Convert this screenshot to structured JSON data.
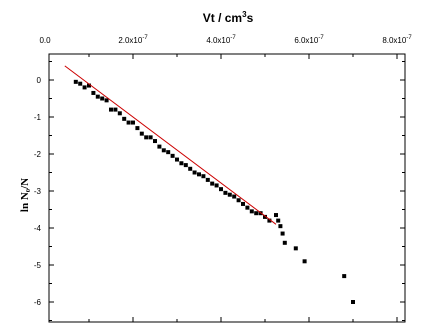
{
  "chart_data": {
    "type": "scatter",
    "title": "",
    "xlabel": {
      "main": "Vt / cm",
      "sup": "3",
      "tail": "s"
    },
    "ylabel": "ln N₀/N",
    "xlim": [
      0.0,
      8e-07
    ],
    "ylim": [
      -6.3,
      0.4
    ],
    "x_ticks": [
      {
        "value": 0.0,
        "mantissa": "0.0",
        "exponent": ""
      },
      {
        "value": 2e-07,
        "mantissa": "2.0x10",
        "exponent": "-7"
      },
      {
        "value": 4e-07,
        "mantissa": "4.0x10",
        "exponent": "-7"
      },
      {
        "value": 6e-07,
        "mantissa": "6.0x10",
        "exponent": "-7"
      },
      {
        "value": 8e-07,
        "mantissa": "8.0x10",
        "exponent": "-7"
      }
    ],
    "y_ticks": [
      0,
      -1,
      -2,
      -3,
      -4,
      -5,
      -6
    ],
    "grid": false,
    "series": [
      {
        "kind": "points",
        "color": "#000000",
        "x": [
          7e-08,
          8e-08,
          9e-08,
          1e-07,
          1.1e-07,
          1.2e-07,
          1.3e-07,
          1.4e-07,
          1.5e-07,
          1.6e-07,
          1.7e-07,
          1.8e-07,
          1.9e-07,
          2e-07,
          2.1e-07,
          2.2e-07,
          2.3e-07,
          2.4e-07,
          2.5e-07,
          2.6e-07,
          2.7e-07,
          2.8e-07,
          2.9e-07,
          3e-07,
          3.1e-07,
          3.2e-07,
          3.3e-07,
          3.4e-07,
          3.5e-07,
          3.6e-07,
          3.7e-07,
          3.8e-07,
          3.9e-07,
          4e-07,
          4.1e-07,
          4.2e-07,
          4.3e-07,
          4.4e-07,
          4.5e-07,
          4.6e-07,
          4.7e-07,
          4.8e-07,
          4.9e-07,
          5e-07,
          5.1e-07,
          5.25e-07,
          5.3e-07,
          5.35e-07,
          5.4e-07,
          5.45e-07,
          5.7e-07,
          5.9e-07,
          6.8e-07,
          7e-07
        ],
        "y": [
          -0.05,
          -0.1,
          -0.2,
          -0.15,
          -0.35,
          -0.45,
          -0.5,
          -0.55,
          -0.8,
          -0.8,
          -0.9,
          -1.05,
          -1.15,
          -1.15,
          -1.3,
          -1.45,
          -1.55,
          -1.55,
          -1.65,
          -1.8,
          -1.9,
          -1.95,
          -2.05,
          -2.15,
          -2.25,
          -2.3,
          -2.4,
          -2.5,
          -2.55,
          -2.6,
          -2.7,
          -2.8,
          -2.85,
          -2.95,
          -3.05,
          -3.1,
          -3.15,
          -3.25,
          -3.35,
          -3.45,
          -3.55,
          -3.6,
          -3.6,
          -3.7,
          -3.8,
          -3.65,
          -3.8,
          -3.95,
          -4.15,
          -4.4,
          -4.55,
          -4.9,
          -5.3,
          -6.0
        ]
      },
      {
        "kind": "fit-line",
        "color": "#cc0000",
        "x": [
          4.5e-08,
          5.25e-07
        ],
        "y": [
          0.38,
          -3.9
        ]
      }
    ]
  }
}
